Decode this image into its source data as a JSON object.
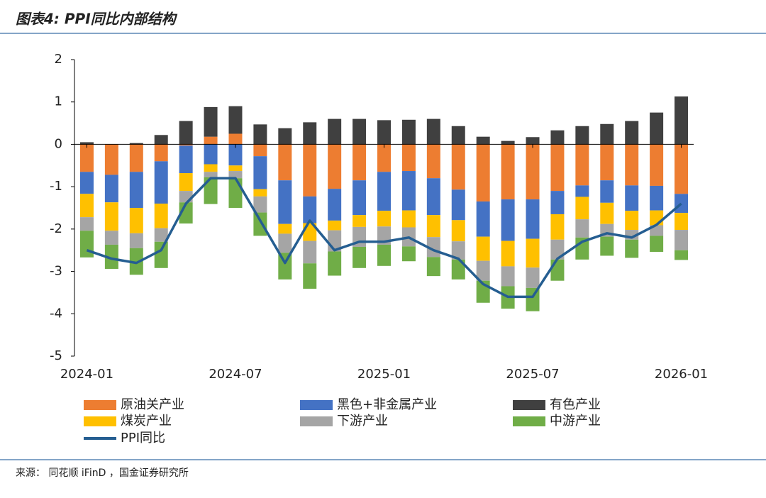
{
  "title": "图表4: PPI同比内部结构",
  "source": "来源： 同花顺 iFinD ，国金证券研究所",
  "chart_data": {
    "type": "bar",
    "stacked": true,
    "categories": [
      "2024-01",
      null,
      null,
      null,
      null,
      null,
      "2024-07",
      null,
      null,
      null,
      null,
      null,
      "2025-01",
      null,
      null,
      null,
      null,
      null,
      "2025-07",
      null,
      null,
      null,
      null,
      null,
      "2026-01"
    ],
    "ylim": [
      -5,
      2
    ],
    "yticks": [
      -5,
      -4,
      -3,
      -2,
      -1,
      0,
      1,
      2
    ],
    "series": [
      {
        "name": "原油关产业",
        "color": "#ED7D31",
        "values": [
          -0.65,
          -0.72,
          -0.65,
          -0.4,
          -0.03,
          0.18,
          0.25,
          -0.28,
          -0.85,
          -1.23,
          -1.05,
          -0.85,
          -0.65,
          -0.63,
          -0.8,
          -1.07,
          -1.35,
          -1.3,
          -1.3,
          -1.1,
          -0.97,
          -0.85,
          -0.97,
          -0.98,
          -1.17
        ]
      },
      {
        "name": "黑色+非金属产业",
        "color": "#4472C4",
        "values": [
          -0.52,
          -0.65,
          -0.85,
          -1.0,
          -0.65,
          -0.47,
          -0.5,
          -0.78,
          -1.03,
          -0.63,
          -0.75,
          -0.82,
          -0.92,
          -0.93,
          -0.87,
          -0.72,
          -0.83,
          -0.98,
          -0.93,
          -0.55,
          -0.27,
          -0.53,
          -0.6,
          -0.58,
          -0.45
        ]
      },
      {
        "name": "有色产业",
        "color": "#404040",
        "values": [
          0.05,
          0,
          0.03,
          0.22,
          0.55,
          0.7,
          0.65,
          0.47,
          0.38,
          0.52,
          0.6,
          0.6,
          0.57,
          0.58,
          0.6,
          0.43,
          0.18,
          0.08,
          0.17,
          0.33,
          0.43,
          0.48,
          0.55,
          0.75,
          1.13
        ]
      },
      {
        "name": "煤炭产业",
        "color": "#FFC000",
        "values": [
          -0.55,
          -0.67,
          -0.6,
          -0.58,
          -0.42,
          -0.18,
          -0.13,
          -0.17,
          -0.23,
          -0.42,
          -0.23,
          -0.28,
          -0.37,
          -0.4,
          -0.52,
          -0.5,
          -0.57,
          -0.6,
          -0.68,
          -0.6,
          -0.53,
          -0.5,
          -0.45,
          -0.35,
          -0.4
        ]
      },
      {
        "name": "下游产业",
        "color": "#A5A5A5",
        "values": [
          -0.32,
          -0.33,
          -0.35,
          -0.32,
          -0.27,
          -0.13,
          -0.17,
          -0.38,
          -0.45,
          -0.53,
          -0.5,
          -0.47,
          -0.43,
          -0.45,
          -0.47,
          -0.43,
          -0.47,
          -0.47,
          -0.48,
          -0.47,
          -0.43,
          -0.3,
          -0.23,
          -0.25,
          -0.48
        ]
      },
      {
        "name": "中游产业",
        "color": "#70AD47",
        "values": [
          -0.63,
          -0.57,
          -0.63,
          -0.62,
          -0.5,
          -0.63,
          -0.7,
          -0.55,
          -0.63,
          -0.6,
          -0.57,
          -0.5,
          -0.5,
          -0.35,
          -0.45,
          -0.47,
          -0.52,
          -0.53,
          -0.55,
          -0.5,
          -0.52,
          -0.45,
          -0.43,
          -0.38,
          -0.23
        ]
      },
      {
        "name": "PPI同比",
        "color": "#255E91",
        "type": "line",
        "values": [
          -2.5,
          -2.7,
          -2.8,
          -2.5,
          -1.4,
          -0.8,
          -0.8,
          -1.8,
          -2.8,
          -1.8,
          -2.5,
          -2.3,
          -2.3,
          -2.2,
          -2.5,
          -2.7,
          -3.3,
          -3.6,
          -3.6,
          -2.7,
          -2.3,
          -2.1,
          -2.2,
          -1.9,
          -1.4
        ]
      }
    ]
  }
}
